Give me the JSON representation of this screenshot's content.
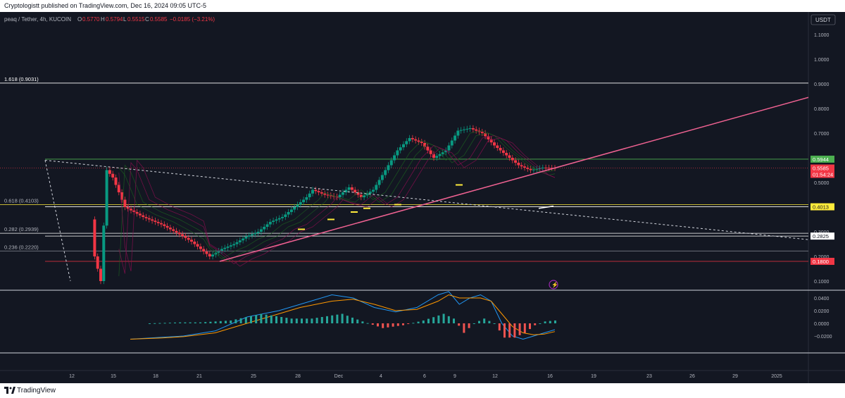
{
  "header": {
    "published": "Cryptologistt published on TradingView.com, Dec 16, 2024 09:05 UTC-5"
  },
  "symbol": {
    "name": "peaq / Tether, 4h, KUCOIN",
    "o": "0.5770",
    "h": "0.5794",
    "l": "0.5515",
    "c": "0.5585",
    "change": "−0.0185 (−3.21%)",
    "colors": {
      "bear": "#f23645",
      "bull": "#089981"
    }
  },
  "footer": {
    "brand": "TradingView"
  },
  "chart_data": [
    {
      "type": "line",
      "title": "peaq / Tether, 4h, KUCOIN",
      "currency": "USDT",
      "ylim": [
        0.05,
        1.15
      ],
      "y_ticks": [
        "1.1000",
        "1.0000",
        "0.9000",
        "0.8000",
        "0.7000",
        "0.6000",
        "0.5000",
        "0.4000",
        "0.3000",
        "0.2000",
        "0.1000"
      ],
      "x_ticks": [
        "12",
        "15",
        "18",
        "21",
        "25",
        "28",
        "Dec",
        "4",
        "6",
        "9",
        "12",
        "16",
        "19",
        "23",
        "26",
        "29",
        "2025"
      ],
      "fib_levels": [
        {
          "label": "1.618 (0.9031)",
          "value": 0.9031
        },
        {
          "label": "0.618 (0.4103)",
          "value": 0.4103
        },
        {
          "label": "0.282 (0.2939)",
          "value": 0.2939
        },
        {
          "label": "0.236 (0.2220)",
          "value": 0.222
        }
      ],
      "price_labels": [
        {
          "text": "0.5944",
          "value": 0.5944,
          "color": "#4caf50"
        },
        {
          "text": "0.5585",
          "value": 0.5585,
          "color": "#f23645"
        },
        {
          "text": "01:54:24",
          "value": 0.5585,
          "color": "#f23645"
        },
        {
          "text": "0.4013",
          "value": 0.4013,
          "color": "#ffeb3b"
        },
        {
          "text": "0.2825",
          "value": 0.2825,
          "color": "#ffffff"
        },
        {
          "text": "0.1800",
          "value": 0.18,
          "color": "#f23645"
        }
      ],
      "series": [
        {
          "values": [
            [
              0,
              0.58
            ],
            [
              3,
              0.5
            ],
            [
              4,
              0.2
            ],
            [
              5,
              0.1
            ],
            [
              6,
              0.55
            ],
            [
              7,
              0.52
            ],
            [
              9,
              0.4
            ],
            [
              12,
              0.36
            ],
            [
              15,
              0.33
            ],
            [
              18,
              0.29
            ],
            [
              20,
              0.26
            ],
            [
              22,
              0.22
            ],
            [
              23,
              0.2
            ],
            [
              25,
              0.23
            ],
            [
              27,
              0.25
            ],
            [
              29,
              0.28
            ],
            [
              31,
              0.3
            ],
            [
              33,
              0.34
            ],
            [
              35,
              0.36
            ],
            [
              37,
              0.4
            ],
            [
              39,
              0.44
            ],
            [
              40,
              0.47
            ],
            [
              42,
              0.45
            ],
            [
              44,
              0.44
            ],
            [
              46,
              0.48
            ],
            [
              48,
              0.44
            ],
            [
              50,
              0.47
            ],
            [
              52,
              0.55
            ],
            [
              54,
              0.63
            ],
            [
              56,
              0.68
            ],
            [
              58,
              0.66
            ],
            [
              60,
              0.6
            ],
            [
              62,
              0.63
            ],
            [
              64,
              0.71
            ],
            [
              66,
              0.72
            ],
            [
              68,
              0.7
            ],
            [
              70,
              0.65
            ],
            [
              72,
              0.61
            ],
            [
              74,
              0.57
            ],
            [
              76,
              0.55
            ],
            [
              78,
              0.56
            ],
            [
              80,
              0.5585
            ]
          ]
        }
      ]
    },
    {
      "type": "line",
      "y_ticks": [
        "0.0400",
        "0.0200",
        "0.0000",
        "−0.0200"
      ],
      "ylim": [
        -0.03,
        0.048
      ],
      "series": [
        {
          "values": [
            [
              0,
              -0.025
            ],
            [
              6,
              -0.022
            ],
            [
              10,
              -0.02
            ],
            [
              16,
              -0.012
            ],
            [
              22,
              0.01
            ],
            [
              28,
              0.02
            ],
            [
              32,
              0.03
            ],
            [
              38,
              0.045
            ],
            [
              42,
              0.04
            ],
            [
              46,
              0.025
            ],
            [
              50,
              0.018
            ],
            [
              54,
              0.025
            ],
            [
              58,
              0.045
            ],
            [
              60,
              0.05
            ],
            [
              62,
              0.03
            ],
            [
              64,
              0.04
            ],
            [
              66,
              0.045
            ],
            [
              68,
              0.035
            ],
            [
              70,
              0.0
            ],
            [
              72,
              -0.02
            ],
            [
              74,
              -0.025
            ],
            [
              76,
              -0.02
            ],
            [
              78,
              -0.015
            ],
            [
              80,
              -0.01
            ]
          ]
        },
        {
          "values": [
            [
              0,
              -0.025
            ],
            [
              6,
              -0.023
            ],
            [
              10,
              -0.021
            ],
            [
              16,
              -0.015
            ],
            [
              22,
              0.0
            ],
            [
              28,
              0.015
            ],
            [
              32,
              0.025
            ],
            [
              38,
              0.035
            ],
            [
              42,
              0.038
            ],
            [
              46,
              0.03
            ],
            [
              50,
              0.02
            ],
            [
              54,
              0.022
            ],
            [
              58,
              0.035
            ],
            [
              60,
              0.045
            ],
            [
              62,
              0.04
            ],
            [
              64,
              0.04
            ],
            [
              66,
              0.04
            ],
            [
              68,
              0.035
            ],
            [
              70,
              0.015
            ],
            [
              72,
              -0.005
            ],
            [
              74,
              -0.015
            ],
            [
              76,
              -0.018
            ],
            [
              78,
              -0.017
            ],
            [
              80,
              -0.013
            ]
          ]
        }
      ]
    }
  ]
}
